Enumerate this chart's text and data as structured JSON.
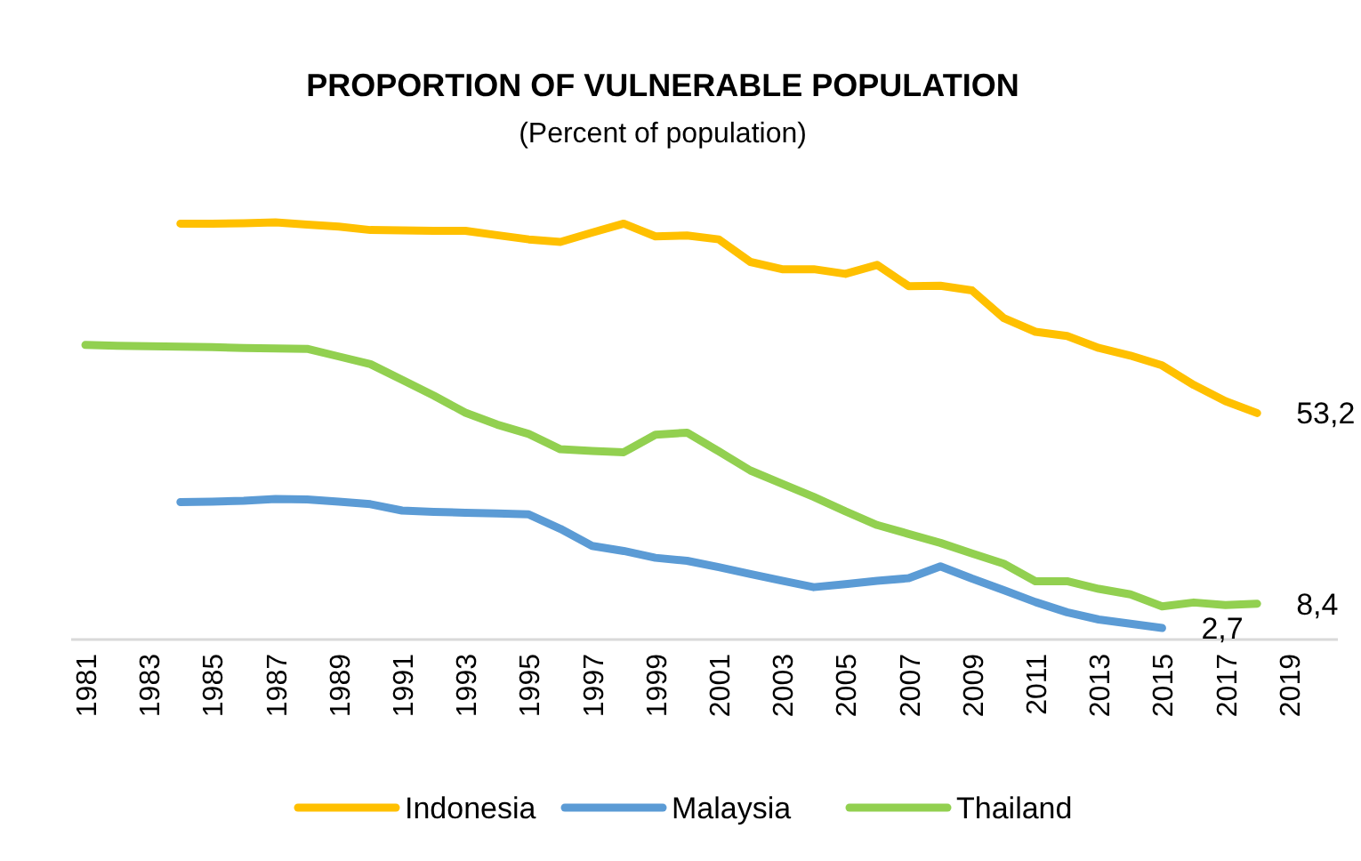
{
  "chart_data": {
    "type": "line",
    "title": "PROPORTION OF VULNERABLE POPULATION",
    "subtitle": "(Percent of population)",
    "categories": [
      "1981",
      null,
      "1983",
      null,
      "1985",
      null,
      "1987",
      null,
      "1989",
      null,
      "1991",
      null,
      "1993",
      null,
      "1995",
      null,
      "1997",
      null,
      "1999",
      null,
      "2001",
      null,
      "2003",
      null,
      "2005",
      null,
      "2007",
      null,
      "2009",
      null,
      "2011",
      null,
      "2013",
      null,
      "2015",
      null,
      "2017",
      null,
      "2019"
    ],
    "legend": "bottom",
    "series": [
      {
        "name": "Indonesia",
        "color": "#ffc000",
        "values": [
          null,
          null,
          null,
          97.7,
          97.7,
          97.8,
          98.0,
          97.5,
          97.0,
          96.2,
          96.1,
          96.0,
          96.0,
          95.0,
          94.0,
          93.4,
          95.6,
          97.7,
          94.7,
          94.9,
          94.0,
          88.7,
          87.0,
          87.0,
          85.9,
          88.0,
          83.0,
          83.1,
          82.0,
          75.5,
          72.3,
          71.3,
          68.5,
          66.7,
          64.4,
          59.8,
          56.0,
          53.2,
          null
        ],
        "value_labels": [
          null,
          null,
          null,
          null,
          null,
          null,
          null,
          null,
          null,
          null,
          null,
          null,
          null,
          null,
          null,
          null,
          null,
          null,
          null,
          null,
          null,
          null,
          null,
          null,
          null,
          null,
          null,
          null,
          null,
          null,
          null,
          null,
          null,
          null,
          null,
          null,
          null,
          "53,2",
          null
        ]
      },
      {
        "name": "Malaysia",
        "color": "#5b9bd5",
        "values": [
          null,
          null,
          null,
          32.3,
          32.4,
          32.6,
          33.0,
          32.9,
          32.4,
          31.8,
          30.3,
          30.0,
          29.8,
          29.6,
          29.4,
          26.0,
          22.0,
          20.8,
          19.2,
          18.5,
          17.0,
          15.4,
          13.8,
          12.3,
          13.0,
          13.8,
          14.4,
          17.2,
          14.3,
          11.6,
          8.8,
          6.4,
          4.7,
          3.7,
          2.7,
          null,
          null,
          null,
          null
        ],
        "value_labels": [
          null,
          null,
          null,
          null,
          null,
          null,
          null,
          null,
          null,
          null,
          null,
          null,
          null,
          null,
          null,
          null,
          null,
          null,
          null,
          null,
          null,
          null,
          null,
          null,
          null,
          null,
          null,
          null,
          null,
          null,
          null,
          null,
          null,
          null,
          "2,7",
          null,
          null,
          null,
          null
        ]
      },
      {
        "name": "Thailand",
        "color": "#92d050",
        "values": [
          69.2,
          69.0,
          68.9,
          68.8,
          68.7,
          68.5,
          68.4,
          68.3,
          66.5,
          64.7,
          61.0,
          57.3,
          53.3,
          50.5,
          48.3,
          44.7,
          44.3,
          44.0,
          48.1,
          48.6,
          44.2,
          39.7,
          36.6,
          33.5,
          30.1,
          26.9,
          24.8,
          22.7,
          20.2,
          17.8,
          13.7,
          13.7,
          11.9,
          10.6,
          7.8,
          8.7,
          8.1,
          8.4,
          null
        ],
        "value_labels": [
          null,
          null,
          null,
          null,
          null,
          null,
          null,
          null,
          null,
          null,
          null,
          null,
          null,
          null,
          null,
          null,
          null,
          null,
          null,
          null,
          null,
          null,
          null,
          null,
          null,
          null,
          null,
          null,
          null,
          null,
          null,
          null,
          null,
          null,
          null,
          null,
          null,
          "8,4",
          null
        ]
      }
    ]
  }
}
